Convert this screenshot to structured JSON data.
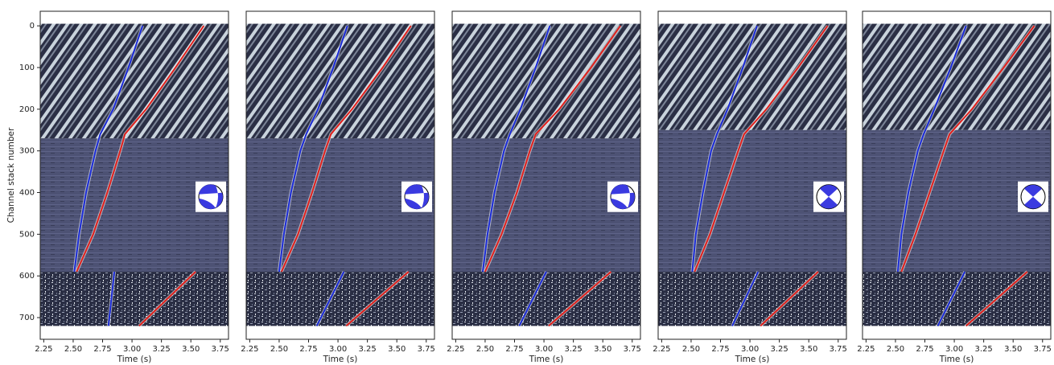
{
  "chart_data": [
    {
      "type": "line",
      "xlabel": "Time (s)",
      "ylabel": "Channel stack number",
      "xlim": [
        2.22,
        3.82
      ],
      "ylim": [
        -35,
        752
      ],
      "y_inverted": true,
      "xticks": [
        2.25,
        {
          "value": 2.5,
          "label": "2.50"
        },
        2.75,
        {
          "value": 3,
          "label": "3.00"
        },
        3.25,
        {
          "value": 3.5,
          "label": "3.50"
        },
        3.75
      ],
      "yticks": [
        0,
        100,
        200,
        300,
        400,
        500,
        600,
        700
      ],
      "series": [
        {
          "color": "#1a2bd6",
          "x": [
            3.09,
            2.97,
            2.84,
            2.73,
            2.69,
            2.61,
            2.55,
            2.51,
            null,
            2.85,
            2.8
          ],
          "values": [
            0,
            100,
            200,
            260,
            300,
            400,
            500,
            590,
            null,
            590,
            720
          ]
        },
        {
          "color": "#e0201c",
          "x": [
            3.61,
            3.37,
            3.12,
            2.94,
            2.9,
            2.79,
            2.67,
            2.53,
            null,
            3.54,
            3.06
          ],
          "values": [
            0,
            100,
            200,
            260,
            300,
            400,
            500,
            590,
            null,
            590,
            720
          ]
        }
      ]
    },
    {
      "type": "line",
      "xlabel": "Time (s)",
      "xlim": [
        2.22,
        3.82
      ],
      "ylim": [
        -35,
        752
      ],
      "y_inverted": true,
      "xticks": [
        2.25,
        {
          "value": 2.5,
          "label": "2.50"
        },
        2.75,
        {
          "value": 3,
          "label": "3.00"
        },
        3.25,
        {
          "value": 3.5,
          "label": "3.50"
        },
        3.75
      ],
      "series": [
        {
          "color": "#1a2bd6",
          "x": [
            3.08,
            2.96,
            2.83,
            2.73,
            2.68,
            2.6,
            2.54,
            2.5,
            null,
            3.05,
            2.82
          ],
          "values": [
            0,
            100,
            200,
            260,
            300,
            400,
            500,
            590,
            null,
            590,
            720
          ]
        },
        {
          "color": "#e0201c",
          "x": [
            3.62,
            3.38,
            3.12,
            2.94,
            2.89,
            2.78,
            2.66,
            2.52,
            null,
            3.6,
            3.07
          ],
          "values": [
            0,
            100,
            200,
            260,
            300,
            400,
            500,
            590,
            null,
            590,
            720
          ]
        }
      ]
    },
    {
      "type": "line",
      "xlabel": "Time (s)",
      "xlim": [
        2.22,
        3.82
      ],
      "ylim": [
        -35,
        752
      ],
      "y_inverted": true,
      "xticks": [
        2.25,
        {
          "value": 2.5,
          "label": "2.50"
        },
        2.75,
        {
          "value": 3,
          "label": "3.00"
        },
        3.25,
        {
          "value": 3.5,
          "label": "3.50"
        },
        3.75
      ],
      "series": [
        {
          "color": "#1a2bd6",
          "x": [
            3.05,
            2.93,
            2.8,
            2.71,
            2.66,
            2.58,
            2.52,
            2.48,
            null,
            3.02,
            2.79
          ],
          "values": [
            0,
            100,
            200,
            260,
            300,
            400,
            500,
            590,
            null,
            590,
            720
          ]
        },
        {
          "color": "#e0201c",
          "x": [
            3.65,
            3.4,
            3.13,
            2.93,
            2.88,
            2.77,
            2.64,
            2.5,
            null,
            3.57,
            3.04
          ],
          "values": [
            0,
            100,
            200,
            260,
            300,
            400,
            500,
            590,
            null,
            590,
            720
          ]
        }
      ]
    },
    {
      "type": "line",
      "xlabel": "Time (s)",
      "xlim": [
        2.22,
        3.82
      ],
      "ylim": [
        -35,
        752
      ],
      "y_inverted": true,
      "xticks": [
        2.25,
        {
          "value": 2.5,
          "label": "2.50"
        },
        2.75,
        {
          "value": 3,
          "label": "3.00"
        },
        3.25,
        {
          "value": 3.5,
          "label": "3.50"
        },
        3.75
      ],
      "series": [
        {
          "color": "#1a2bd6",
          "x": [
            3.06,
            2.94,
            2.81,
            2.72,
            2.67,
            2.6,
            2.54,
            2.51,
            null,
            3.07,
            2.85
          ],
          "values": [
            0,
            100,
            200,
            260,
            300,
            400,
            500,
            590,
            null,
            590,
            720
          ]
        },
        {
          "color": "#e0201c",
          "x": [
            3.66,
            3.41,
            3.14,
            2.95,
            2.9,
            2.78,
            2.66,
            2.53,
            null,
            3.58,
            3.09
          ],
          "values": [
            0,
            100,
            200,
            260,
            300,
            400,
            500,
            590,
            null,
            590,
            720
          ]
        }
      ]
    },
    {
      "type": "line",
      "xlabel": "Time (s)",
      "xlim": [
        2.22,
        3.82
      ],
      "ylim": [
        -35,
        752
      ],
      "y_inverted": true,
      "xticks": [
        2.25,
        {
          "value": 2.5,
          "label": "2.50"
        },
        2.75,
        {
          "value": 3,
          "label": "3.00"
        },
        3.25,
        {
          "value": 3.5,
          "label": "3.50"
        },
        3.75
      ],
      "series": [
        {
          "color": "#1a2bd6",
          "x": [
            3.1,
            2.97,
            2.83,
            2.74,
            2.69,
            2.61,
            2.55,
            2.52,
            null,
            3.09,
            2.86
          ],
          "values": [
            0,
            100,
            200,
            260,
            300,
            400,
            500,
            590,
            null,
            590,
            720
          ]
        },
        {
          "color": "#e0201c",
          "x": [
            3.68,
            3.42,
            3.15,
            2.96,
            2.91,
            2.79,
            2.67,
            2.55,
            null,
            3.62,
            3.1
          ],
          "values": [
            0,
            100,
            200,
            260,
            300,
            400,
            500,
            590,
            null,
            590,
            720
          ]
        }
      ]
    }
  ]
}
